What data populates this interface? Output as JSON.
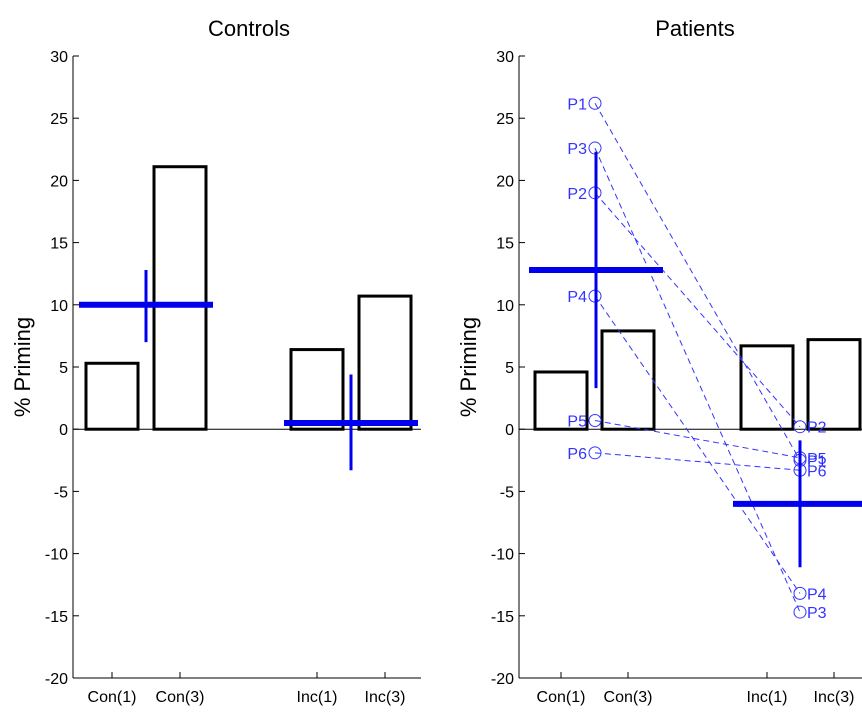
{
  "chart_data": [
    {
      "type": "bar",
      "title": "Controls",
      "ylabel": "% Priming",
      "xlabel": "",
      "ylim": [
        -20,
        30
      ],
      "yticks": [
        -20,
        -15,
        -10,
        -5,
        0,
        5,
        10,
        15,
        20,
        25,
        30
      ],
      "categories": [
        "Con(1)",
        "Con(3)",
        "Inc(1)",
        "Inc(3)"
      ],
      "values": [
        5.3,
        21.1,
        6.4,
        10.7
      ],
      "bar_color": "#000000",
      "mean_markers": [
        {
          "group": "Con",
          "mean": 10.0,
          "error_low": 7.0,
          "error_high": 12.8
        },
        {
          "group": "Inc",
          "mean": 0.5,
          "error_low": -3.3,
          "error_high": 4.4
        }
      ],
      "marker_color": "#0000ee"
    },
    {
      "type": "bar",
      "title": "Patients",
      "ylabel": "% Priming",
      "xlabel": "",
      "ylim": [
        -20,
        30
      ],
      "yticks": [
        -20,
        -15,
        -10,
        -5,
        0,
        5,
        10,
        15,
        20,
        25,
        30
      ],
      "categories": [
        "Con(1)",
        "Con(3)",
        "Inc(1)",
        "Inc(3)"
      ],
      "values": [
        4.6,
        7.9,
        6.7,
        7.2
      ],
      "bar_color": "#000000",
      "mean_markers": [
        {
          "group": "Con",
          "mean": 12.8,
          "error_low": 3.3,
          "error_high": 22.3
        },
        {
          "group": "Inc",
          "mean": -6.0,
          "error_low": -11.1,
          "error_high": -0.9
        }
      ],
      "marker_color": "#0000ee",
      "patients": [
        {
          "name": "P1",
          "con": 26.2,
          "inc": -2.5
        },
        {
          "name": "P2",
          "con": 19.0,
          "inc": 0.2
        },
        {
          "name": "P3",
          "con": 22.6,
          "inc": -14.7
        },
        {
          "name": "P4",
          "con": 10.7,
          "inc": -13.2
        },
        {
          "name": "P5",
          "con": 0.7,
          "inc": -2.3
        },
        {
          "name": "P6",
          "con": -1.9,
          "inc": -3.3
        }
      ],
      "patient_color": "#3333ff"
    }
  ]
}
